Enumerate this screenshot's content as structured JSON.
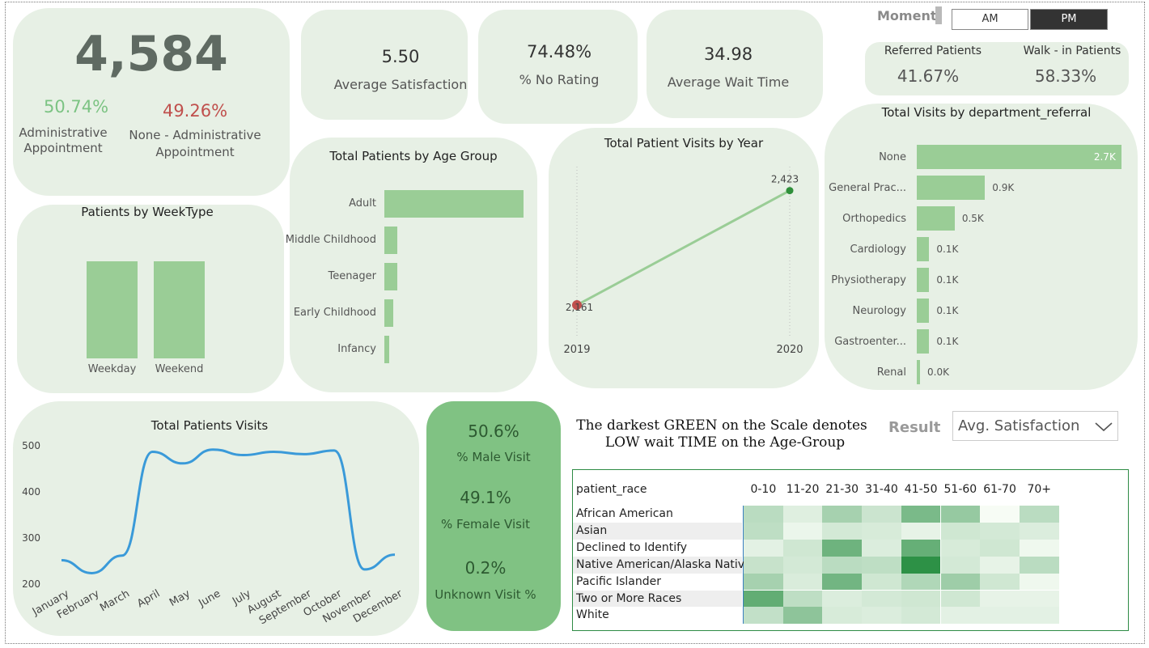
{
  "moment": {
    "label": "Moment",
    "am": "AM",
    "pm": "PM",
    "selected": "PM"
  },
  "kpi": {
    "total": "4,584",
    "admin_pct": "50.74%",
    "admin_label_1": "Administrative",
    "admin_label_2": "Appointment",
    "nonadmin_pct": "49.26%",
    "nonadmin_label_1": "None - Administrative",
    "nonadmin_label_2": "Appointment",
    "avg_satisfaction": "5.50",
    "avg_satisfaction_label": "Average Satisfaction",
    "no_rating": "74.48%",
    "no_rating_label": "% No Rating",
    "avg_wait": "34.98",
    "avg_wait_label": "Average Wait Time",
    "referred_label": "Referred Patients",
    "referred": "41.67%",
    "walkin_label": "Walk - in Patients",
    "walkin": "58.33%"
  },
  "gender": {
    "male": "50.6%",
    "male_label": "% Male Visit",
    "female": "49.1%",
    "female_label": "% Female Visit",
    "unknown": "0.2%",
    "unknown_label": "Unknown Visit %"
  },
  "colors": {
    "card": "#e7f0e5",
    "bar": "#9acd96",
    "line": "#3a9ad9",
    "accent_green": "#7cc383",
    "accent_red": "#c0504d"
  },
  "weektype": {
    "title": "Patients by WeekType",
    "chart_data": {
      "type": "bar",
      "categories": [
        "Weekday",
        "Weekend"
      ],
      "values": [
        2290,
        2294
      ]
    }
  },
  "age": {
    "title": "Total Patients by Age Group",
    "chart_data": {
      "type": "bar",
      "categories": [
        "Adult",
        "Middle Childhood",
        "Teenager",
        "Early Childhood",
        "Infancy"
      ],
      "values": [
        3300,
        300,
        300,
        220,
        120
      ]
    }
  },
  "year": {
    "title": "Total Patient Visits by Year",
    "chart_data": {
      "type": "line",
      "x": [
        "2019",
        "2020"
      ],
      "values": [
        2161,
        2423
      ],
      "labels": [
        "2,161",
        "2,423"
      ]
    }
  },
  "dept": {
    "title": "Total Visits by department_referral",
    "chart_data": {
      "type": "bar",
      "categories": [
        "None",
        "General Prac...",
        "Orthopedics",
        "Cardiology",
        "Physiotherapy",
        "Neurology",
        "Gastroenter...",
        "Renal"
      ],
      "values": [
        2.7,
        0.9,
        0.5,
        0.1,
        0.1,
        0.1,
        0.1,
        0.0
      ],
      "labels": [
        "2.7K",
        "0.9K",
        "0.5K",
        "0.1K",
        "0.1K",
        "0.1K",
        "0.1K",
        "0.0K"
      ]
    }
  },
  "monthly": {
    "title": "Total Patients Visits",
    "chart_data": {
      "type": "line",
      "categories": [
        "January",
        "February",
        "March",
        "April",
        "May",
        "June",
        "July",
        "August",
        "September",
        "October",
        "November",
        "December"
      ],
      "values": [
        250,
        222,
        260,
        485,
        460,
        490,
        478,
        485,
        480,
        488,
        230,
        262
      ],
      "yticks": [
        500,
        400,
        300,
        200
      ],
      "ylim": [
        200,
        500
      ]
    }
  },
  "heatmap": {
    "note_1": "The darkest GREEN on the Scale denotes",
    "note_2": "LOW wait TIME on the Age-Group",
    "result_label": "Result",
    "result_value": "Avg. Satisfaction",
    "row_header": "patient_race",
    "chart_data": {
      "type": "heatmap",
      "columns": [
        "0-10",
        "11-20",
        "21-30",
        "31-40",
        "41-50",
        "51-60",
        "61-70",
        "70+"
      ],
      "rows": [
        "African American",
        "Asian",
        "Declined to Identify",
        "Native American/Alaska Native",
        "Pacific Islander",
        "Two or More Races",
        "White"
      ],
      "values": [
        [
          0.3,
          0.12,
          0.4,
          0.22,
          0.62,
          0.48,
          0.0,
          0.3
        ],
        [
          0.28,
          0.06,
          0.18,
          0.16,
          0.08,
          0.2,
          0.18,
          0.14
        ],
        [
          0.1,
          0.2,
          0.68,
          0.14,
          0.72,
          0.16,
          0.2,
          0.04
        ],
        [
          0.24,
          0.18,
          0.3,
          0.28,
          1.0,
          0.18,
          0.08,
          0.3
        ],
        [
          0.4,
          0.15,
          0.66,
          0.2,
          0.35,
          0.44,
          0.2,
          0.04
        ],
        [
          0.74,
          0.28,
          0.14,
          0.18,
          0.2,
          0.2,
          0.08,
          0.08
        ],
        [
          0.26,
          0.52,
          0.16,
          0.14,
          0.18,
          0.1,
          0.1,
          0.1
        ]
      ]
    }
  }
}
